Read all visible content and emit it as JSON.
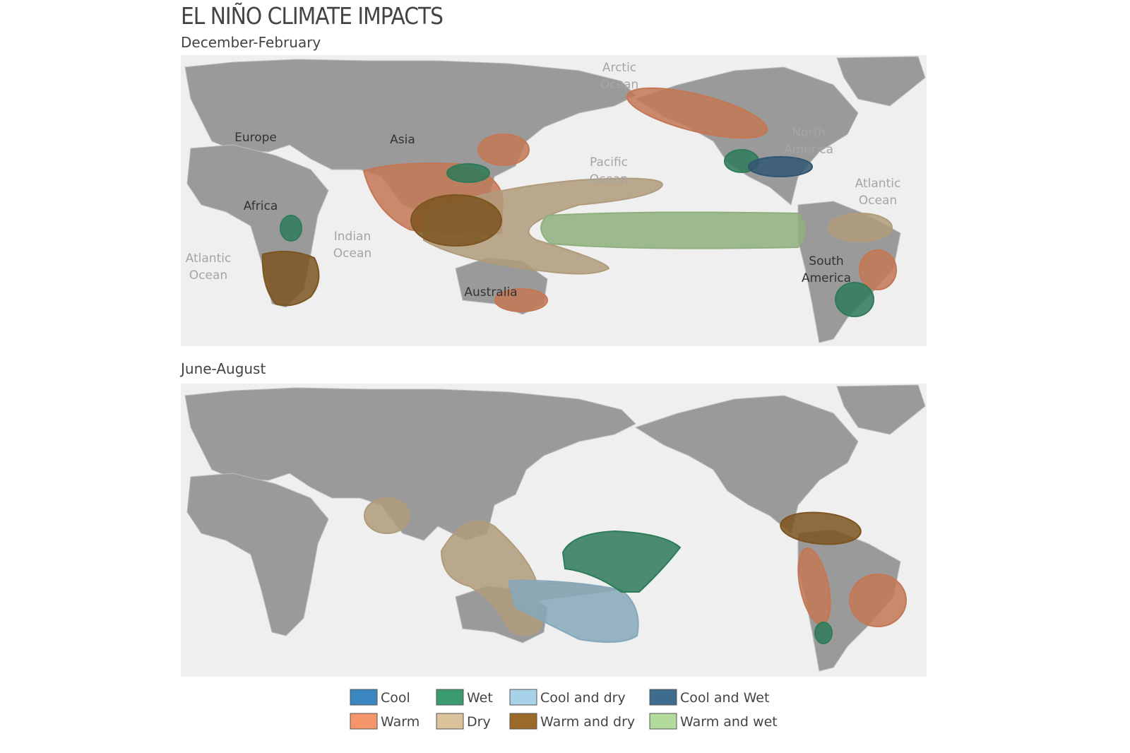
{
  "title": "EL NIÑO CLIMATE IMPACTS",
  "panels": [
    {
      "subtitle": "December-February",
      "labels": [
        "Arctic Ocean",
        "Europe",
        "Asia",
        "North America",
        "Pacific Ocean",
        "Atlantic Ocean",
        "Africa",
        "Indian Ocean",
        "Atlantic Ocean",
        "South America",
        "Australia"
      ]
    },
    {
      "subtitle": "June-August"
    }
  ],
  "legend": [
    {
      "label": "Cool",
      "color": "#3a86c0"
    },
    {
      "label": "Wet",
      "color": "#3a9a70"
    },
    {
      "label": "Cool and dry",
      "color": "#a8d2ea"
    },
    {
      "label": "Cool and Wet",
      "color": "#3e6c8e"
    },
    {
      "label": "Warm",
      "color": "#f4956a"
    },
    {
      "label": "Dry",
      "color": "#dcc29a"
    },
    {
      "label": "Warm and dry",
      "color": "#9b6a28"
    },
    {
      "label": "Warm and wet",
      "color": "#b3dc9c"
    }
  ]
}
